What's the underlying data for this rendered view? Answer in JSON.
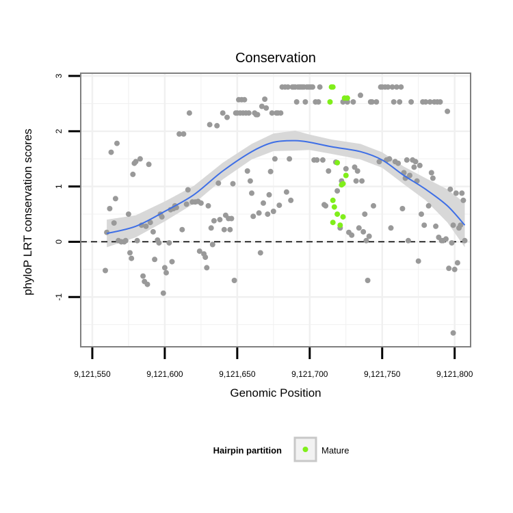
{
  "chart_data": {
    "type": "scatter",
    "title": "Conservation",
    "xlabel": "Genomic Position",
    "ylabel": "phyloP LRT conservation scores",
    "xlim": [
      9121542,
      9121811
    ],
    "ylim": [
      -1.9,
      3.05
    ],
    "x_ticks": [
      9121550,
      9121600,
      9121650,
      9121700,
      9121750,
      9121800
    ],
    "x_tick_labels": [
      "9,121,550",
      "9,121,600",
      "9,121,650",
      "9,121,700",
      "9,121,750",
      "9,121,800"
    ],
    "y_ticks": [
      -1,
      0,
      1,
      2,
      3
    ],
    "y_tick_labels": [
      "-1",
      "0",
      "1",
      "2",
      "3"
    ],
    "grid": true,
    "reference_line": {
      "y": 0,
      "style": "dashed"
    },
    "colors": {
      "background_points": "#999999",
      "mature_points": "#80ee1a",
      "smooth_line": "#3d6ee6",
      "confidence_band": "#d6d6d6",
      "grid": "#f0f0f0",
      "panel_border": "#7f7f7f"
    },
    "series": [
      {
        "color": "#999999",
        "points": [
          [
            9121559,
            -0.52
          ],
          [
            9121560,
            0.17
          ],
          [
            9121562,
            0.6
          ],
          [
            9121563,
            1.62
          ],
          [
            9121565,
            0.34
          ],
          [
            9121566,
            0.78
          ],
          [
            9121567,
            1.78
          ],
          [
            9121568,
            0.02
          ],
          [
            9121570,
            0.0
          ],
          [
            9121572,
            0.0
          ],
          [
            9121573,
            0.02
          ],
          [
            9121575,
            0.5
          ],
          [
            9121576,
            -0.2
          ],
          [
            9121577,
            -0.3
          ],
          [
            9121578,
            1.22
          ],
          [
            9121579,
            1.42
          ],
          [
            9121580,
            1.45
          ],
          [
            9121581,
            0.02
          ],
          [
            9121583,
            1.5
          ],
          [
            9121584,
            0.3
          ],
          [
            9121585,
            -0.62
          ],
          [
            9121586,
            -0.72
          ],
          [
            9121587,
            0.28
          ],
          [
            9121588,
            -0.77
          ],
          [
            9121589,
            1.4
          ],
          [
            9121590,
            0.35
          ],
          [
            9121592,
            0.18
          ],
          [
            9121593,
            -0.32
          ],
          [
            9121595,
            0.03
          ],
          [
            9121596,
            -0.02
          ],
          [
            9121597,
            0.5
          ],
          [
            9121598,
            0.45
          ],
          [
            9121599,
            -0.93
          ],
          [
            9121600,
            -0.47
          ],
          [
            9121601,
            -0.56
          ],
          [
            9121603,
            -0.02
          ],
          [
            9121604,
            0.58
          ],
          [
            9121605,
            -0.36
          ],
          [
            9121606,
            0.6
          ],
          [
            9121607,
            0.65
          ],
          [
            9121608,
            0.62
          ],
          [
            9121610,
            1.95
          ],
          [
            9121612,
            0.22
          ],
          [
            9121613,
            1.95
          ],
          [
            9121615,
            0.68
          ],
          [
            9121616,
            0.94
          ],
          [
            9121617,
            2.33
          ],
          [
            9121619,
            0.72
          ],
          [
            9121621,
            0.72
          ],
          [
            9121623,
            0.73
          ],
          [
            9121624,
            -0.17
          ],
          [
            9121625,
            0.7
          ],
          [
            9121627,
            -0.22
          ],
          [
            9121628,
            -0.28
          ],
          [
            9121629,
            -0.47
          ],
          [
            9121630,
            0.65
          ],
          [
            9121631,
            2.12
          ],
          [
            9121632,
            0.25
          ],
          [
            9121633,
            -0.05
          ],
          [
            9121634,
            0.38
          ],
          [
            9121636,
            2.1
          ],
          [
            9121637,
            1.06
          ],
          [
            9121638,
            0.4
          ],
          [
            9121640,
            2.33
          ],
          [
            9121641,
            0.22
          ],
          [
            9121642,
            0.48
          ],
          [
            9121643,
            2.25
          ],
          [
            9121644,
            0.42
          ],
          [
            9121645,
            0.22
          ],
          [
            9121646,
            0.42
          ],
          [
            9121647,
            1.05
          ],
          [
            9121648,
            -0.7
          ],
          [
            9121649,
            2.33
          ],
          [
            9121650,
            2.33
          ],
          [
            9121651,
            2.57
          ],
          [
            9121652,
            2.33
          ],
          [
            9121653,
            2.57
          ],
          [
            9121654,
            2.33
          ],
          [
            9121655,
            2.57
          ],
          [
            9121656,
            2.33
          ],
          [
            9121657,
            1.28
          ],
          [
            9121658,
            2.33
          ],
          [
            9121659,
            1.1
          ],
          [
            9121660,
            0.88
          ],
          [
            9121661,
            0.46
          ],
          [
            9121662,
            2.33
          ],
          [
            9121663,
            2.3
          ],
          [
            9121664,
            2.3
          ],
          [
            9121665,
            0.52
          ],
          [
            9121666,
            -0.2
          ],
          [
            9121667,
            2.45
          ],
          [
            9121668,
            0.7
          ],
          [
            9121669,
            2.58
          ],
          [
            9121670,
            2.42
          ],
          [
            9121671,
            0.5
          ],
          [
            9121672,
            0.85
          ],
          [
            9121673,
            1.27
          ],
          [
            9121674,
            2.33
          ],
          [
            9121675,
            0.55
          ],
          [
            9121676,
            1.5
          ],
          [
            9121677,
            2.33
          ],
          [
            9121678,
            2.33
          ],
          [
            9121679,
            0.66
          ],
          [
            9121680,
            2.33
          ],
          [
            9121681,
            2.8
          ],
          [
            9121683,
            2.8
          ],
          [
            9121684,
            0.9
          ],
          [
            9121685,
            2.8
          ],
          [
            9121686,
            1.5
          ],
          [
            9121687,
            0.75
          ],
          [
            9121688,
            2.8
          ],
          [
            9121689,
            2.8
          ],
          [
            9121690,
            2.8
          ],
          [
            9121691,
            2.53
          ],
          [
            9121692,
            2.8
          ],
          [
            9121693,
            2.8
          ],
          [
            9121694,
            2.8
          ],
          [
            9121695,
            2.8
          ],
          [
            9121696,
            2.8
          ],
          [
            9121697,
            2.53
          ],
          [
            9121698,
            2.8
          ],
          [
            9121699,
            2.8
          ],
          [
            9121700,
            2.8
          ],
          [
            9121701,
            2.8
          ],
          [
            9121702,
            2.8
          ],
          [
            9121703,
            1.48
          ],
          [
            9121704,
            2.53
          ],
          [
            9121705,
            1.48
          ],
          [
            9121706,
            2.53
          ],
          [
            9121707,
            2.8
          ],
          [
            9121709,
            1.48
          ],
          [
            9121710,
            0.67
          ],
          [
            9121711,
            0.65
          ],
          [
            9121713,
            1.28
          ],
          [
            9121718,
            1.44
          ],
          [
            9121719,
            0.92
          ],
          [
            9121721,
            0.25
          ],
          [
            9121722,
            1.1
          ],
          [
            9121723,
            2.53
          ],
          [
            9121725,
            1.32
          ],
          [
            9121726,
            2.53
          ],
          [
            9121727,
            0.17
          ],
          [
            9121729,
            0.12
          ],
          [
            9121730,
            2.53
          ],
          [
            9121731,
            1.35
          ],
          [
            9121732,
            1.1
          ],
          [
            9121733,
            1.28
          ],
          [
            9121734,
            0.25
          ],
          [
            9121735,
            2.65
          ],
          [
            9121736,
            1.1
          ],
          [
            9121737,
            0.18
          ],
          [
            9121738,
            0.5
          ],
          [
            9121739,
            0.02
          ],
          [
            9121740,
            -0.7
          ],
          [
            9121741,
            0.1
          ],
          [
            9121742,
            2.53
          ],
          [
            9121743,
            2.53
          ],
          [
            9121744,
            0.65
          ],
          [
            9121746,
            2.53
          ],
          [
            9121748,
            1.45
          ],
          [
            9121749,
            2.8
          ],
          [
            9121750,
            2.8
          ],
          [
            9121752,
            2.8
          ],
          [
            9121753,
            1.48
          ],
          [
            9121754,
            2.8
          ],
          [
            9121755,
            1.5
          ],
          [
            9121756,
            0.25
          ],
          [
            9121757,
            2.8
          ],
          [
            9121758,
            2.53
          ],
          [
            9121759,
            1.45
          ],
          [
            9121760,
            2.8
          ],
          [
            9121761,
            1.42
          ],
          [
            9121762,
            2.53
          ],
          [
            9121763,
            2.8
          ],
          [
            9121764,
            0.6
          ],
          [
            9121765,
            1.25
          ],
          [
            9121766,
            1.15
          ],
          [
            9121767,
            1.48
          ],
          [
            9121768,
            0.02
          ],
          [
            9121769,
            1.2
          ],
          [
            9121770,
            2.53
          ],
          [
            9121771,
            1.48
          ],
          [
            9121772,
            1.35
          ],
          [
            9121773,
            1.45
          ],
          [
            9121774,
            1.1
          ],
          [
            9121775,
            -0.35
          ],
          [
            9121776,
            1.38
          ],
          [
            9121777,
            0.5
          ],
          [
            9121778,
            2.53
          ],
          [
            9121779,
            0.3
          ],
          [
            9121780,
            2.53
          ],
          [
            9121782,
            0.65
          ],
          [
            9121783,
            2.53
          ],
          [
            9121784,
            1.25
          ],
          [
            9121785,
            1.15
          ],
          [
            9121786,
            2.53
          ],
          [
            9121787,
            0.28
          ],
          [
            9121788,
            2.53
          ],
          [
            9121789,
            0.08
          ],
          [
            9121790,
            2.53
          ],
          [
            9121791,
            0.02
          ],
          [
            9121792,
            0.02
          ],
          [
            9121794,
            0.05
          ],
          [
            9121795,
            2.36
          ],
          [
            9121796,
            -0.48
          ],
          [
            9121797,
            0.95
          ],
          [
            9121798,
            -0.02
          ],
          [
            9121799,
            0.3
          ],
          [
            9121800,
            -0.5
          ],
          [
            9121801,
            0.88
          ],
          [
            9121802,
            -0.38
          ],
          [
            9121803,
            0.25
          ],
          [
            9121804,
            0.3
          ],
          [
            9121805,
            0.88
          ],
          [
            9121806,
            0.75
          ],
          [
            9121807,
            0.02
          ],
          [
            9121799,
            -1.65
          ]
        ]
      },
      {
        "name": "Mature",
        "color": "#80ee1a",
        "points": [
          [
            9121715,
            2.8
          ],
          [
            9121716,
            2.8
          ],
          [
            9121714,
            2.53
          ],
          [
            9121716,
            0.75
          ],
          [
            9121717,
            0.63
          ],
          [
            9121716,
            0.35
          ],
          [
            9121719,
            0.5
          ],
          [
            9121719,
            1.43
          ],
          [
            9121721,
            0.3
          ],
          [
            9121723,
            1.05
          ],
          [
            9121722,
            1.03
          ],
          [
            9121723,
            0.45
          ],
          [
            9121725,
            1.2
          ],
          [
            9121724,
            2.6
          ],
          [
            9121726,
            2.6
          ]
        ]
      }
    ],
    "smooth": {
      "color": "#3d6ee6",
      "x": [
        9121560,
        9121580,
        9121600,
        9121620,
        9121640,
        9121660,
        9121675,
        9121690,
        9121700,
        9121715,
        9121735,
        9121750,
        9121765,
        9121780,
        9121795,
        9121807
      ],
      "y": [
        0.15,
        0.28,
        0.55,
        0.85,
        1.28,
        1.63,
        1.8,
        1.83,
        1.8,
        1.72,
        1.63,
        1.48,
        1.2,
        0.95,
        0.65,
        0.3
      ],
      "se": [
        0.25,
        0.2,
        0.18,
        0.16,
        0.15,
        0.14,
        0.16,
        0.18,
        0.14,
        0.13,
        0.14,
        0.14,
        0.16,
        0.2,
        0.3,
        0.4
      ]
    },
    "legend": {
      "title": "Hairpin partition",
      "entries": [
        "Mature"
      ],
      "position": "bottom"
    }
  }
}
